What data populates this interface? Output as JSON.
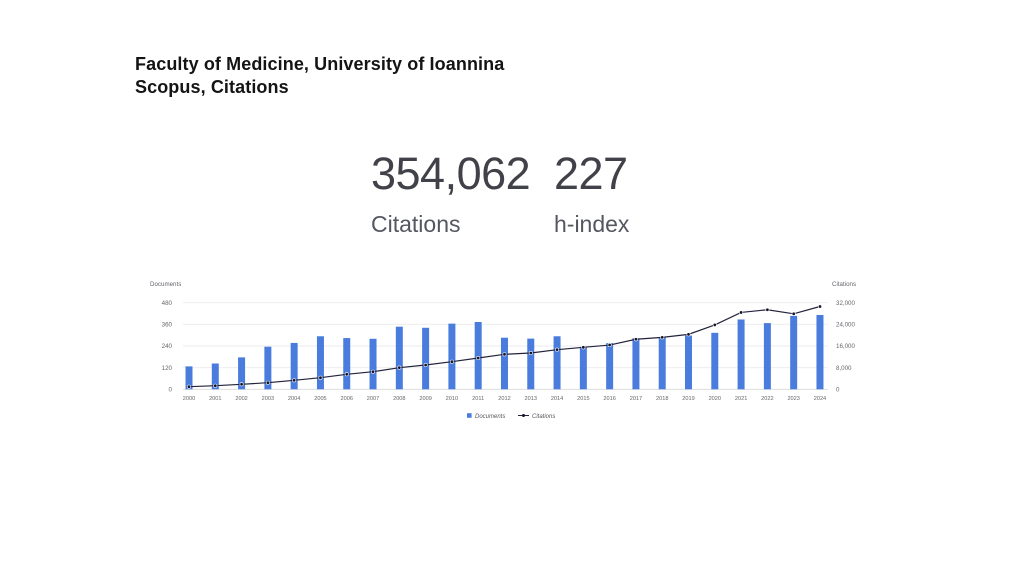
{
  "slide": {
    "title_line1": "Faculty of Medicine, University of Ioannina",
    "title_line2": "Scopus, Citations"
  },
  "stats": [
    {
      "value": "354,062",
      "label": "Citations"
    },
    {
      "value": "227",
      "label": "h-index"
    }
  ],
  "chart_data": {
    "type": "combo-bar-line",
    "categories": [
      "2000",
      "2001",
      "2002",
      "2003",
      "2004",
      "2005",
      "2006",
      "2007",
      "2008",
      "2009",
      "2010",
      "2011",
      "2012",
      "2013",
      "2014",
      "2015",
      "2016",
      "2017",
      "2018",
      "2019",
      "2020",
      "2021",
      "2022",
      "2023",
      "2024"
    ],
    "series": [
      {
        "name": "Documents",
        "type": "bar",
        "axis": "left",
        "color": "#4a7cde",
        "values": [
          127,
          143,
          177,
          236,
          257,
          294,
          284,
          280,
          347,
          341,
          364,
          373,
          286,
          281,
          294,
          235,
          256,
          283,
          288,
          298,
          313,
          387,
          367,
          407,
          412
        ]
      },
      {
        "name": "Citations",
        "type": "line",
        "axis": "right",
        "color": "#23233c",
        "marker_color": "#14142a",
        "values": [
          960,
          1330,
          1850,
          2440,
          3320,
          4290,
          5540,
          6500,
          7990,
          8980,
          10200,
          11570,
          12920,
          13420,
          14640,
          15510,
          16350,
          18500,
          19200,
          20300,
          23800,
          28400,
          29400,
          27900,
          30600
        ]
      }
    ],
    "left_axis": {
      "title": "Documents",
      "ticks": [
        0,
        120,
        240,
        360,
        480
      ],
      "max": 480
    },
    "right_axis": {
      "title": "Citations",
      "ticks": [
        "0",
        "8,000",
        "16,000",
        "24,000",
        "32,000"
      ],
      "max": 32000
    },
    "legend": [
      {
        "label": "Documents",
        "marker": "square"
      },
      {
        "label": "Citations",
        "marker": "line-dot"
      }
    ],
    "grid": true,
    "legend_position": "bottom-center",
    "tick_color": "#64666b",
    "grid_color": "#ebebeb",
    "axis_line_color": "#d8d8d8"
  }
}
